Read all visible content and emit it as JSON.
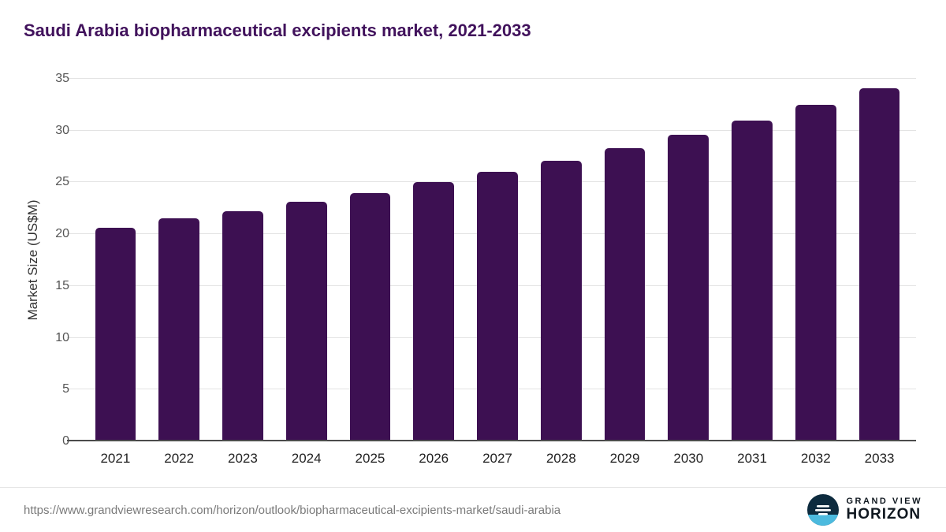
{
  "chart_data": {
    "type": "bar",
    "title": "Saudi Arabia biopharmaceutical excipients market, 2021-2033",
    "categories": [
      "2021",
      "2022",
      "2023",
      "2024",
      "2025",
      "2026",
      "2027",
      "2028",
      "2029",
      "2030",
      "2031",
      "2032",
      "2033"
    ],
    "values": [
      20.6,
      21.5,
      22.2,
      23.1,
      24.0,
      25.0,
      26.0,
      27.1,
      28.3,
      29.6,
      31.0,
      32.5,
      34.1
    ],
    "xlabel": "",
    "ylabel": "Market Size (US$M)",
    "ylim": [
      0,
      35
    ],
    "yticks": [
      0,
      5,
      10,
      15,
      20,
      25,
      30,
      35
    ],
    "grid": true,
    "legend": "none",
    "bar_color": "#3d1052"
  },
  "footer": {
    "source_url": "https://www.grandviewresearch.com/horizon/outlook/biopharmaceutical-excipients-market/saudi-arabia",
    "logo_line1": "GRAND VIEW",
    "logo_line2": "HORIZON"
  },
  "colors": {
    "title": "#41125c",
    "bar": "#3d1052",
    "gridline": "#e3e3e3",
    "axis_line": "#4c4c4c",
    "logo_dark": "#0d2b3e",
    "logo_blue": "#4cbade"
  }
}
